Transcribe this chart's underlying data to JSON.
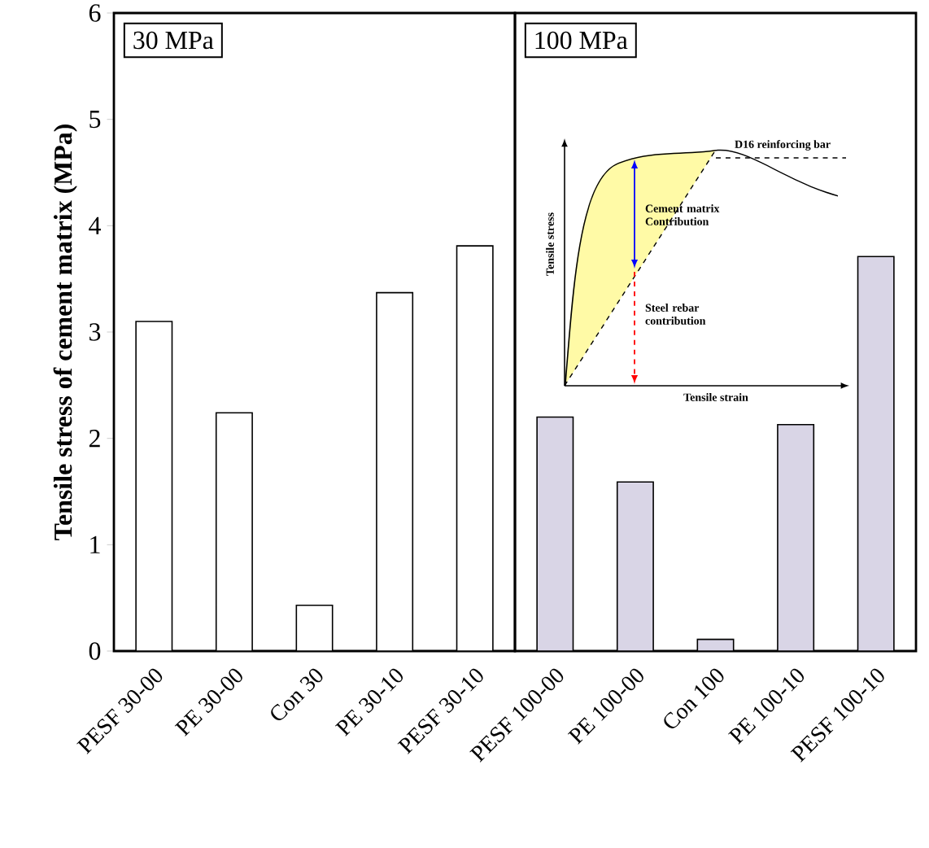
{
  "chart_data": [
    {
      "type": "bar",
      "ylabel": "Tensile stress of cement matrix (MPa)",
      "categories": [
        "PESF 30-00",
        "PE 30-00",
        "Con 30",
        "PE 30-10",
        "PESF 30-10"
      ],
      "series": [
        {
          "color": "#ffffff",
          "values": [
            3.1,
            2.24,
            0.43,
            3.37,
            3.81
          ]
        }
      ],
      "ylim": [
        0,
        6
      ],
      "yticks": [
        0,
        1,
        2,
        3,
        4,
        5,
        6
      ],
      "annotations": [
        "30 MPa"
      ]
    },
    {
      "type": "bar",
      "categories": [
        "PESF 100-00",
        "PE 100-00",
        "Con 100",
        "PE 100-10",
        "PESF 100-10"
      ],
      "series": [
        {
          "color": "#d9d5e6",
          "values": [
            2.2,
            1.59,
            0.11,
            2.13,
            3.71
          ]
        }
      ],
      "ylim": [
        0,
        6
      ],
      "yticks": [
        0,
        1,
        2,
        3,
        4,
        5,
        6
      ],
      "tick_labels": "x",
      "annotations": [
        "100 MPa",
        "D16 reinforcing bar",
        "Tensile stress",
        "Cement matrix Contribution",
        "Steel rebar contribution",
        "Tensile strain"
      ]
    }
  ]
}
